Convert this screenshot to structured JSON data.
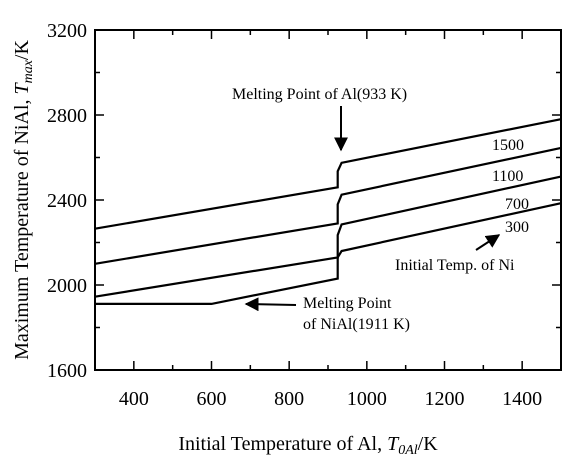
{
  "chart_data": {
    "type": "line",
    "xlabel": "Initial Temperature of Al, ",
    "xlabel_sym": "T",
    "xlabel_sub": "0Al",
    "xlabel_unit": "/K",
    "ylabel": "Maximum Temperature of NiAl, ",
    "ylabel_sym": "T",
    "ylabel_sub": "max",
    "ylabel_unit": "/K",
    "xlim": [
      300,
      1500
    ],
    "ylim": [
      1600,
      3200
    ],
    "xticks": [
      400,
      600,
      800,
      1000,
      1200,
      1400
    ],
    "yticks": [
      1600,
      2000,
      2400,
      2800,
      3200
    ],
    "series": [
      {
        "name": "1500",
        "x": [
          300,
          925,
          925,
          935,
          1500
        ],
        "y": [
          2265,
          2460,
          2535,
          2575,
          2780
        ]
      },
      {
        "name": "1100",
        "x": [
          300,
          925,
          925,
          935,
          1500
        ],
        "y": [
          2100,
          2290,
          2380,
          2425,
          2645
        ]
      },
      {
        "name": "700",
        "x": [
          300,
          925,
          925,
          935,
          1500
        ],
        "y": [
          1945,
          2130,
          2235,
          2285,
          2510
        ]
      },
      {
        "name": "300",
        "x": [
          300,
          600,
          925,
          925,
          935,
          1500
        ],
        "y": [
          1911,
          1911,
          2030,
          2130,
          2160,
          2385
        ]
      }
    ],
    "annotations": {
      "melting_al": "Melting Point of Al(933 K)",
      "melting_nial_line1": "Melting Point",
      "melting_nial_line2": "of NiAl(1911 K)",
      "initial_temp": "Initial Temp. of Ni"
    }
  }
}
